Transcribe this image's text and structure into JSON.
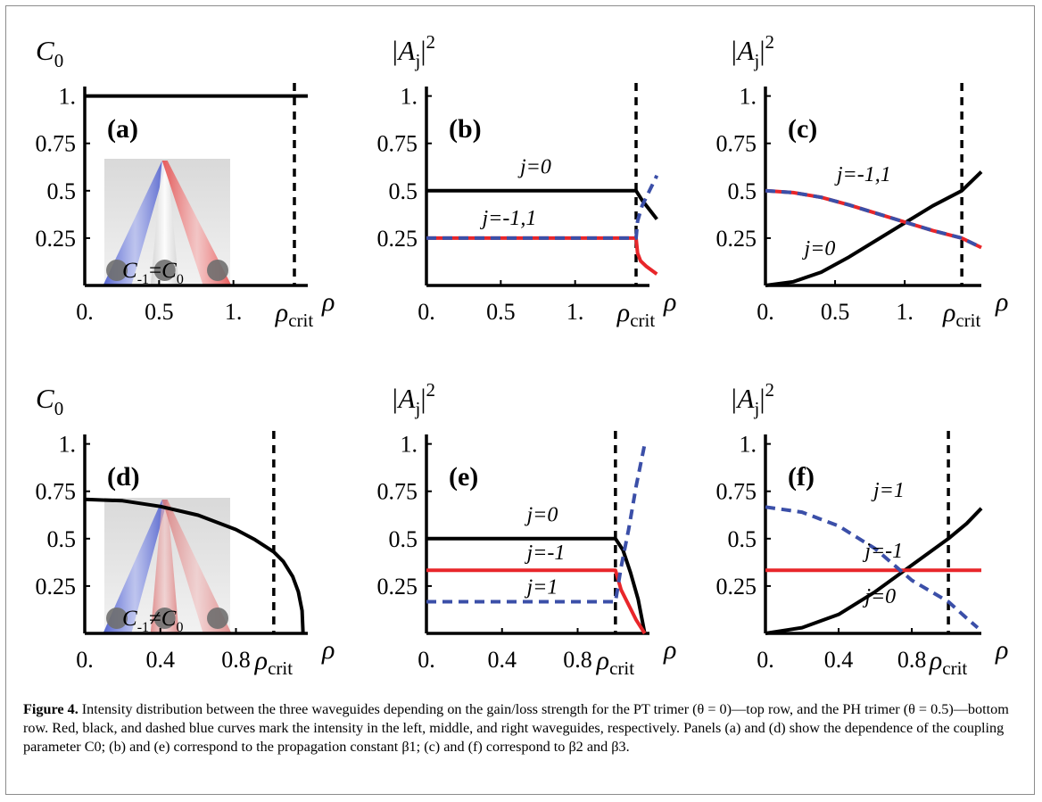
{
  "figure": {
    "caption": {
      "label": "Figure 4.",
      "text": "Intensity distribution between the three waveguides depending on the gain/loss strength for the PT trimer (θ = 0)—top row, and the PH trimer (θ = 0.5)—bottom row. Red, black, and dashed blue curves mark the intensity in the left, middle, and right waveguides, respectively. Panels (a) and (d) show the dependence of the coupling parameter C0; (b) and (e) correspond to the propagation constant β1; (c) and (f) correspond to β2 and β3."
    },
    "x_axis_symbol": "ρ",
    "x_crit_label": {
      "main": "ρ",
      "sub": "crit"
    },
    "colors": {
      "left": "#e8262a",
      "middle": "#000000",
      "right": "#3b4fa8",
      "inset_blue": "#6a7bd8",
      "inset_red": "#f08080"
    }
  },
  "chart_data": [
    {
      "panel": "(a)",
      "type": "line",
      "ylabel": {
        "main": "C",
        "sub": "0"
      },
      "xticks": [
        "0.",
        "0.5",
        "1."
      ],
      "xtick_values": [
        0,
        0.5,
        1.0
      ],
      "yticks": [
        "0.25",
        "0.5",
        "0.75",
        "1."
      ],
      "ytick_values": [
        0.25,
        0.5,
        0.75,
        1.0
      ],
      "xlim": [
        0,
        1.5
      ],
      "ylim": [
        0,
        1.05
      ],
      "crit": 1.41,
      "inset_label": {
        "a": "C",
        "a_sub": "-1",
        "rel": "=",
        "b": "C",
        "b_sub": "0"
      },
      "series": [
        {
          "color": "middle",
          "dashed": false,
          "points": [
            [
              0,
              1.0
            ],
            [
              1.5,
              1.0
            ]
          ]
        }
      ],
      "curve_labels": []
    },
    {
      "panel": "(b)",
      "type": "line",
      "ylabel": {
        "main": "|A",
        "sub": "j",
        "tail": "|",
        "sup": "2"
      },
      "xticks": [
        "0.",
        "0.5",
        "1."
      ],
      "xtick_values": [
        0,
        0.5,
        1.0
      ],
      "yticks": [
        "0.25",
        "0.5",
        "0.75",
        "1."
      ],
      "ytick_values": [
        0.25,
        0.5,
        0.75,
        1.0
      ],
      "xlim": [
        0,
        1.5
      ],
      "ylim": [
        0,
        1.05
      ],
      "crit": 1.41,
      "series": [
        {
          "color": "middle",
          "dashed": false,
          "points": [
            [
              0,
              0.5
            ],
            [
              1.41,
              0.5
            ],
            [
              1.45,
              0.45
            ],
            [
              1.5,
              0.4
            ],
            [
              1.55,
              0.35
            ]
          ]
        },
        {
          "color": "left",
          "dashed": false,
          "points": [
            [
              0,
              0.25
            ],
            [
              1.41,
              0.25
            ],
            [
              1.42,
              0.17
            ],
            [
              1.44,
              0.13
            ],
            [
              1.48,
              0.1
            ],
            [
              1.55,
              0.06
            ]
          ]
        },
        {
          "color": "right",
          "dashed": true,
          "points": [
            [
              0,
              0.25
            ],
            [
              1.41,
              0.25
            ],
            [
              1.42,
              0.34
            ],
            [
              1.45,
              0.42
            ],
            [
              1.5,
              0.5
            ],
            [
              1.55,
              0.58
            ]
          ]
        }
      ],
      "curve_labels": [
        {
          "text": "j=0",
          "x": 0.42,
          "y": 0.59
        },
        {
          "text": "j=-1,1",
          "x": 0.25,
          "y": 0.32
        }
      ]
    },
    {
      "panel": "(c)",
      "type": "line",
      "ylabel": {
        "main": "|A",
        "sub": "j",
        "tail": "|",
        "sup": "2"
      },
      "xticks": [
        "0.",
        "0.5",
        "1."
      ],
      "xtick_values": [
        0,
        0.5,
        1.0
      ],
      "yticks": [
        "0.25",
        "0.5",
        "0.75",
        "1."
      ],
      "ytick_values": [
        0.25,
        0.5,
        0.75,
        1.0
      ],
      "xlim": [
        0,
        1.55
      ],
      "ylim": [
        0,
        1.05
      ],
      "crit": 1.41,
      "series": [
        {
          "color": "middle",
          "dashed": false,
          "points": [
            [
              0,
              0
            ],
            [
              0.2,
              0.02
            ],
            [
              0.4,
              0.07
            ],
            [
              0.6,
              0.15
            ],
            [
              0.8,
              0.24
            ],
            [
              1.0,
              0.33
            ],
            [
              1.2,
              0.42
            ],
            [
              1.41,
              0.5
            ],
            [
              1.55,
              0.6
            ]
          ]
        },
        {
          "color": "left",
          "dashed": false,
          "points": [
            [
              0,
              0.5
            ],
            [
              0.2,
              0.49
            ],
            [
              0.4,
              0.465
            ],
            [
              0.6,
              0.425
            ],
            [
              0.8,
              0.38
            ],
            [
              1.0,
              0.335
            ],
            [
              1.2,
              0.29
            ],
            [
              1.41,
              0.25
            ],
            [
              1.55,
              0.2
            ]
          ]
        },
        {
          "color": "right",
          "dashed": true,
          "points": [
            [
              0,
              0.5
            ],
            [
              0.2,
              0.49
            ],
            [
              0.4,
              0.465
            ],
            [
              0.6,
              0.425
            ],
            [
              0.8,
              0.38
            ],
            [
              1.0,
              0.335
            ],
            [
              1.2,
              0.29
            ],
            [
              1.41,
              0.25
            ],
            [
              1.55,
              0.2
            ]
          ]
        }
      ],
      "curve_labels": [
        {
          "text": "j=-1,1",
          "x": 0.33,
          "y": 0.55
        },
        {
          "text": "j=0",
          "x": 0.18,
          "y": 0.16
        }
      ]
    },
    {
      "panel": "(d)",
      "type": "line",
      "ylabel": {
        "main": "C",
        "sub": "0"
      },
      "xticks": [
        "0.",
        "0.4",
        "0.8"
      ],
      "xtick_values": [
        0,
        0.4,
        0.8
      ],
      "yticks": [
        "0.25",
        "0.5",
        "0.75",
        "1."
      ],
      "ytick_values": [
        0.25,
        0.5,
        0.75,
        1.0
      ],
      "xlim": [
        0,
        1.18
      ],
      "ylim": [
        0,
        1.05
      ],
      "crit": 1.0,
      "inset_label": {
        "a": "C",
        "a_sub": "-1",
        "rel": "≠",
        "b": "C",
        "b_sub": "0"
      },
      "series": [
        {
          "color": "middle",
          "dashed": false,
          "points": [
            [
              0,
              0.707
            ],
            [
              0.2,
              0.7
            ],
            [
              0.4,
              0.67
            ],
            [
              0.6,
              0.624
            ],
            [
              0.8,
              0.548
            ],
            [
              0.9,
              0.495
            ],
            [
              1.0,
              0.43
            ],
            [
              1.05,
              0.38
            ],
            [
              1.1,
              0.3
            ],
            [
              1.13,
              0.22
            ],
            [
              1.15,
              0.12
            ],
            [
              1.155,
              0
            ]
          ]
        }
      ],
      "curve_labels": []
    },
    {
      "panel": "(e)",
      "type": "line",
      "ylabel": {
        "main": "|A",
        "sub": "j",
        "tail": "|",
        "sup": "2"
      },
      "xticks": [
        "0.",
        "0.4",
        "0.8"
      ],
      "xtick_values": [
        0,
        0.4,
        0.8
      ],
      "yticks": [
        "0.25",
        "0.5",
        "0.75",
        "1."
      ],
      "ytick_values": [
        0.25,
        0.5,
        0.75,
        1.0
      ],
      "xlim": [
        0,
        1.18
      ],
      "ylim": [
        0,
        1.05
      ],
      "crit": 1.0,
      "series": [
        {
          "color": "middle",
          "dashed": false,
          "points": [
            [
              0,
              0.5
            ],
            [
              1.0,
              0.5
            ],
            [
              1.04,
              0.44
            ],
            [
              1.08,
              0.32
            ],
            [
              1.12,
              0.18
            ],
            [
              1.155,
              0
            ]
          ]
        },
        {
          "color": "left",
          "dashed": false,
          "points": [
            [
              0,
              0.333
            ],
            [
              1.0,
              0.333
            ],
            [
              1.03,
              0.23
            ],
            [
              1.07,
              0.15
            ],
            [
              1.11,
              0.07
            ],
            [
              1.155,
              0
            ]
          ]
        },
        {
          "color": "right",
          "dashed": true,
          "points": [
            [
              0,
              0.167
            ],
            [
              1.0,
              0.167
            ],
            [
              1.03,
              0.35
            ],
            [
              1.07,
              0.55
            ],
            [
              1.11,
              0.78
            ],
            [
              1.155,
              1.0
            ]
          ]
        }
      ],
      "curve_labels": [
        {
          "text": "j=0",
          "x": 0.45,
          "y": 0.59
        },
        {
          "text": "j=-1",
          "x": 0.45,
          "y": 0.39
        },
        {
          "text": "j=1",
          "x": 0.45,
          "y": 0.21
        }
      ]
    },
    {
      "panel": "(f)",
      "type": "line",
      "ylabel": {
        "main": "|A",
        "sub": "j",
        "tail": "|",
        "sup": "2"
      },
      "xticks": [
        "0.",
        "0.4",
        "0.8"
      ],
      "xtick_values": [
        0,
        0.4,
        0.8
      ],
      "yticks": [
        "0.25",
        "0.5",
        "0.75",
        "1."
      ],
      "ytick_values": [
        0.25,
        0.5,
        0.75,
        1.0
      ],
      "xlim": [
        0,
        1.18
      ],
      "ylim": [
        0,
        1.05
      ],
      "crit": 1.0,
      "series": [
        {
          "color": "middle",
          "dashed": false,
          "points": [
            [
              0,
              0
            ],
            [
              0.2,
              0.03
            ],
            [
              0.4,
              0.1
            ],
            [
              0.6,
              0.22
            ],
            [
              0.8,
              0.36
            ],
            [
              1.0,
              0.5
            ],
            [
              1.1,
              0.58
            ],
            [
              1.18,
              0.66
            ]
          ]
        },
        {
          "color": "left",
          "dashed": false,
          "points": [
            [
              0,
              0.333
            ],
            [
              1.18,
              0.333
            ]
          ]
        },
        {
          "color": "right",
          "dashed": true,
          "points": [
            [
              0,
              0.667
            ],
            [
              0.2,
              0.64
            ],
            [
              0.4,
              0.567
            ],
            [
              0.6,
              0.447
            ],
            [
              0.8,
              0.28
            ],
            [
              1.0,
              0.167
            ],
            [
              1.1,
              0.08
            ],
            [
              1.16,
              0.03
            ]
          ]
        }
      ],
      "curve_labels": [
        {
          "text": "j=1",
          "x": 0.5,
          "y": 0.72
        },
        {
          "text": "j=-1",
          "x": 0.46,
          "y": 0.4
        },
        {
          "text": "j=0",
          "x": 0.46,
          "y": 0.16
        }
      ]
    }
  ]
}
